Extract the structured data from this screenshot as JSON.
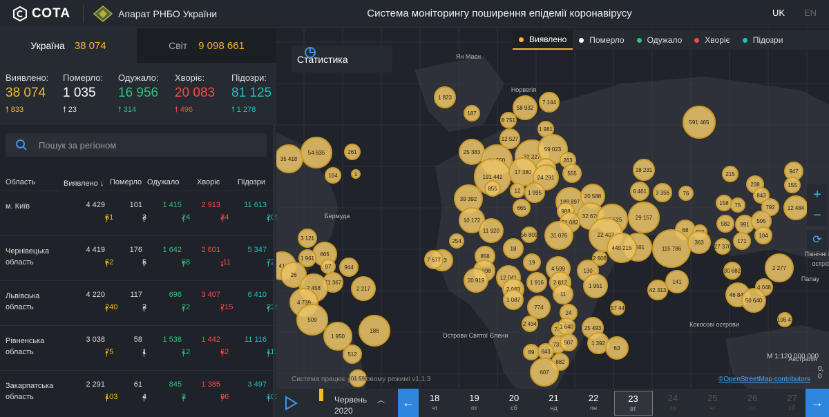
{
  "header": {
    "logo_text": "СОТА",
    "org": "Апарат РНБО України",
    "title": "Система моніторингу поширення епідемії коронавірусу",
    "lang_uk": "UK",
    "lang_en": "EN"
  },
  "totals": {
    "ukraine_label": "Україна",
    "ukraine_value": "38 074",
    "world_label": "Світ",
    "world_value": "9 098 661"
  },
  "stats": [
    {
      "label": "Виявлено:",
      "value": "38 074",
      "delta": "833",
      "color": "#f5b82e"
    },
    {
      "label": "Померло:",
      "value": "1 035",
      "delta": "23",
      "color": "#ffffff"
    },
    {
      "label": "Одужало:",
      "value": "16 956",
      "delta": "314",
      "color": "#2ec27e"
    },
    {
      "label": "Хворіє:",
      "value": "20 083",
      "delta": "496",
      "color": "#ff4a4a"
    },
    {
      "label": "Підозри:",
      "value": "81 125",
      "delta": "1 278",
      "color": "#20c0c0"
    }
  ],
  "search": {
    "placeholder": "Пошук за регіоном"
  },
  "table": {
    "headers": [
      "Область",
      "Виявлено",
      "Померло",
      "Одужало",
      "Хворіє",
      "Підозри"
    ],
    "sort_arrow": "↓",
    "rows": [
      {
        "name": "м. Київ",
        "confirmed": "4 429",
        "confirmed_d": "61",
        "deaths": "101",
        "deaths_d": "3",
        "recovered": "1 415",
        "recovered_d": "24",
        "sick": "2 913",
        "sick_d": "34",
        "suspected": "11 613",
        "suspected_d": "205"
      },
      {
        "name": "Чернівецька область",
        "confirmed": "4 419",
        "confirmed_d": "62",
        "deaths": "176",
        "deaths_d": "5",
        "recovered": "1 642",
        "recovered_d": "68",
        "sick": "2 601",
        "sick_d": "-11",
        "suspected": "5 347",
        "suspected_d": "72"
      },
      {
        "name": "Львівська область",
        "confirmed": "4 220",
        "confirmed_d": "240",
        "deaths": "117",
        "deaths_d": "3",
        "recovered": "696",
        "recovered_d": "22",
        "sick": "3 407",
        "sick_d": "215",
        "suspected": "6 410",
        "suspected_d": "239"
      },
      {
        "name": "Рівненська область",
        "confirmed": "3 038",
        "confirmed_d": "75",
        "deaths": "58",
        "deaths_d": "1",
        "recovered": "1 538",
        "recovered_d": "12",
        "sick": "1 442",
        "sick_d": "62",
        "suspected": "11 116",
        "suspected_d": "110"
      },
      {
        "name": "Закарпатська область",
        "confirmed": "2 291",
        "confirmed_d": "103",
        "deaths": "61",
        "deaths_d": "4",
        "recovered": "845",
        "recovered_d": "3",
        "sick": "1 385",
        "sick_d": "96",
        "suspected": "3 497",
        "suspected_d": "102"
      }
    ]
  },
  "map": {
    "stats_button": "Статистика",
    "legend": [
      "Виявлено",
      "Померло",
      "Одужало",
      "Хворіє",
      "Підозри"
    ],
    "legend_colors": [
      "#f5b82e",
      "#ffffff",
      "#2ec27e",
      "#ff4a4a",
      "#20c0c0"
    ],
    "labels": [
      "Ян Маєн",
      "Норвегія",
      "Бермуда",
      "Острови Святої Єлени",
      "Кокосові острови",
      "Північні Ма",
      "острова",
      "Палау",
      "Австралія"
    ],
    "bubbles": [
      "1 823",
      "187",
      "58 932",
      "7 144",
      "8 751",
      "1 981",
      "12 527",
      "591 465",
      "25 383",
      "60 550",
      "32 227",
      "59 023",
      "35 418",
      "54 835",
      "261",
      "164",
      "1",
      "191 442",
      "17 380",
      "2 091",
      "24 291",
      "263",
      "555",
      "18 231",
      "215",
      "947",
      "855",
      "12",
      "1 995",
      "188 897",
      "20 588",
      "6 461",
      "3 356",
      "76",
      "238",
      "155",
      "39 392",
      "988",
      "665",
      "32 676",
      "207 525",
      "29 157",
      "158",
      "75",
      "843",
      "792",
      "12 484",
      "10 172",
      "11 920",
      "21 082",
      "22 407",
      "9 561",
      "68",
      "589",
      "582",
      "991",
      "595",
      "56 809",
      "31 076",
      "440 215",
      "115 786",
      "363",
      "104",
      "3 121",
      "18",
      "254",
      "171",
      "27 370",
      "665",
      "1 961",
      "858",
      "19",
      "2 808",
      "41",
      "903",
      "8 698",
      "4 599",
      "130",
      "30 682",
      "2 277",
      "26",
      "97",
      "944",
      "7 677",
      "20 919",
      "12 041",
      "2 963",
      "1 916",
      "2 812",
      "1 951",
      "141",
      "4 048",
      "71 367",
      "2 458",
      "2 217",
      "42 313",
      "46 845",
      "50 640",
      "4 739",
      "1 087",
      "774",
      "11",
      "257 447",
      "509",
      "24",
      "1 106 470",
      "186",
      "2 434",
      "25 493",
      "1 950",
      "749",
      "1 640",
      "1 392",
      "512",
      "737",
      "507",
      "63",
      "89",
      "643",
      "882",
      "101 590",
      "607"
    ],
    "version": "Система працює у тестовому режимі v1.1.3",
    "attribution": "©OpenStreetMap contributors",
    "scale": "М 1:120 000 000",
    "coords": "0, 0",
    "zoom_in": "+",
    "zoom_out": "−"
  },
  "timeline": {
    "month": "Червень",
    "year": "2020",
    "days": [
      {
        "d": "18",
        "w": "чт"
      },
      {
        "d": "19",
        "w": "пт"
      },
      {
        "d": "20",
        "w": "сб"
      },
      {
        "d": "21",
        "w": "нд"
      },
      {
        "d": "22",
        "w": "пн"
      },
      {
        "d": "23",
        "w": "вт"
      },
      {
        "d": "24",
        "w": "ср"
      },
      {
        "d": "25",
        "w": "чт"
      },
      {
        "d": "26",
        "w": "пт"
      },
      {
        "d": "27",
        "w": "сб"
      }
    ],
    "selected_index": 5
  }
}
